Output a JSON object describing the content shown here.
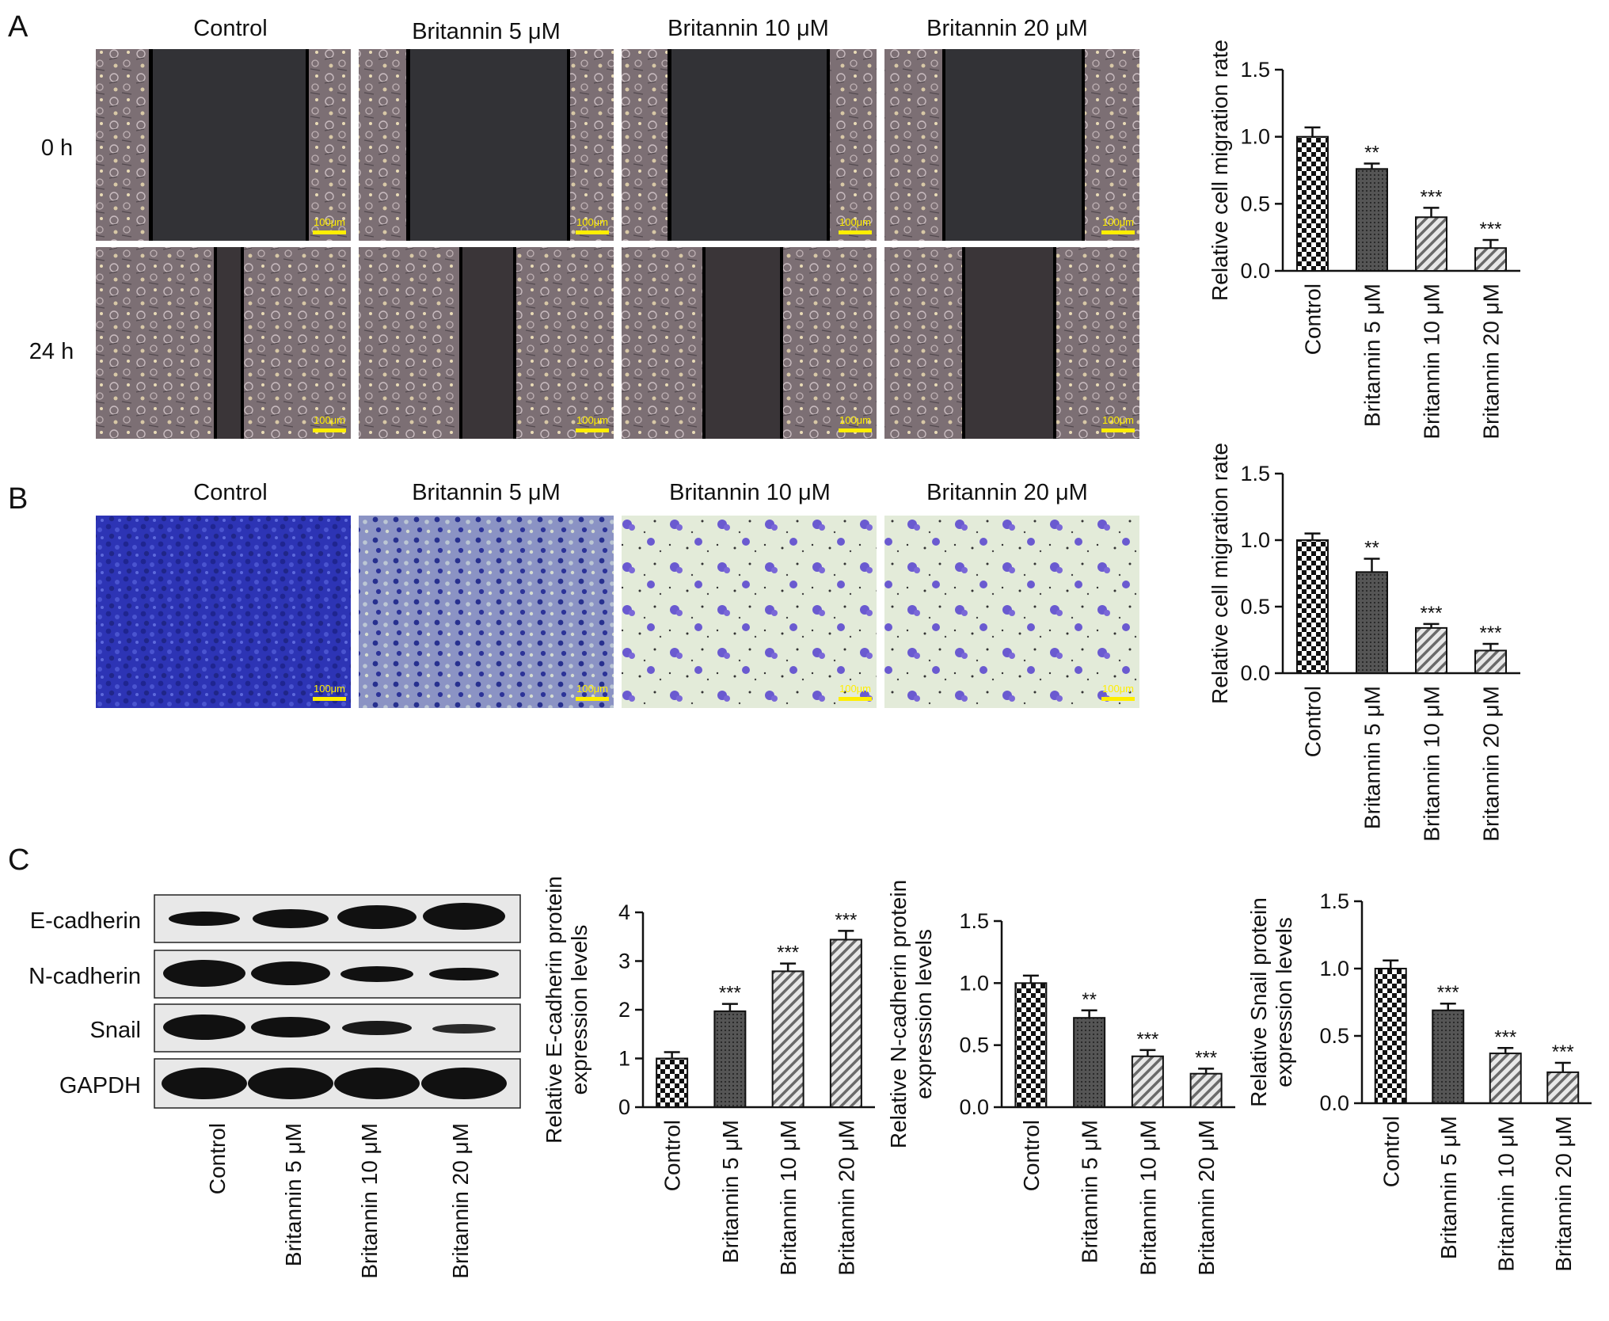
{
  "panel_labels": [
    "A",
    "B",
    "C"
  ],
  "groups": [
    "Control",
    "Britannin 5 μM",
    "Britannin 10 μM",
    "Britannin 20 μM"
  ],
  "panel_a": {
    "time_labels": [
      "0 h",
      "24 h"
    ],
    "scale_bar": "100μm"
  },
  "panel_b": {
    "scale_bar": "100μm"
  },
  "panel_c": {
    "blot_labels": [
      "E-cadherin",
      "N-cadherin",
      "Snail",
      "GAPDH"
    ]
  },
  "colors": {
    "wound_bg": "#323236",
    "cell_texture": "#8a7a7e",
    "transwell_dense": "#2a2fb0",
    "transwell_sparse_bg": "#e3ebd9",
    "transwell_cells": "#6a5ad0",
    "scale_bar": "#ffee00",
    "blot_bg": "#e8e8e8",
    "blot_band": "#111111"
  },
  "chart_data": [
    {
      "id": "chart_a",
      "type": "bar",
      "categories": [
        "Control",
        "Britannin 5 μM",
        "Britannin 10 μM",
        "Britannin 20 μM"
      ],
      "values": [
        1.0,
        0.76,
        0.4,
        0.17
      ],
      "errors": [
        0.07,
        0.04,
        0.07,
        0.06
      ],
      "significance": [
        "",
        "**",
        "***",
        "***"
      ],
      "patterns": [
        "checker",
        "dense",
        "hatch",
        "hatch"
      ],
      "ylabel": "Relative cell migration rate",
      "ylabel_lines": [
        "Relative cell migration rate"
      ],
      "ylim": [
        0,
        1.5
      ],
      "yticks": [
        0.0,
        0.5,
        1.0,
        1.5
      ],
      "ytick_labels": [
        "0.0",
        "0.5",
        "1.0",
        "1.5"
      ]
    },
    {
      "id": "chart_b",
      "type": "bar",
      "categories": [
        "Control",
        "Britannin 5 μM",
        "Britannin 10 μM",
        "Britannin 20 μM"
      ],
      "values": [
        1.0,
        0.76,
        0.34,
        0.17
      ],
      "errors": [
        0.05,
        0.1,
        0.03,
        0.05
      ],
      "significance": [
        "",
        "**",
        "***",
        "***"
      ],
      "patterns": [
        "checker",
        "dense",
        "hatch",
        "hatch"
      ],
      "ylabel": "Relative cell migration rate",
      "ylabel_lines": [
        "Relative cell migration rate"
      ],
      "ylim": [
        0,
        1.5
      ],
      "yticks": [
        0.0,
        0.5,
        1.0,
        1.5
      ],
      "ytick_labels": [
        "0.0",
        "0.5",
        "1.0",
        "1.5"
      ]
    },
    {
      "id": "chart_c1",
      "type": "bar",
      "categories": [
        "Control",
        "Britannin 5 μM",
        "Britannin 10 μM",
        "Britannin 20 μM"
      ],
      "values": [
        1.0,
        1.97,
        2.79,
        3.44
      ],
      "errors": [
        0.13,
        0.15,
        0.16,
        0.18
      ],
      "significance": [
        "",
        "***",
        "***",
        "***"
      ],
      "patterns": [
        "checker",
        "dense",
        "hatch",
        "hatch"
      ],
      "ylabel": "Relative E-cadherin protein expression levels",
      "ylabel_lines": [
        "Relative E-cadherin protein",
        "expression levels"
      ],
      "ylim": [
        0,
        4
      ],
      "yticks": [
        0,
        1,
        2,
        3,
        4
      ],
      "ytick_labels": [
        "0",
        "1",
        "2",
        "3",
        "4"
      ]
    },
    {
      "id": "chart_c2",
      "type": "bar",
      "categories": [
        "Control",
        "Britannin 5 μM",
        "Britannin 10 μM",
        "Britannin 20 μM"
      ],
      "values": [
        1.0,
        0.72,
        0.41,
        0.27
      ],
      "errors": [
        0.06,
        0.06,
        0.05,
        0.04
      ],
      "significance": [
        "",
        "**",
        "***",
        "***"
      ],
      "patterns": [
        "checker",
        "dense",
        "hatch",
        "hatch"
      ],
      "ylabel": "Relative N-cadherin protein expression levels",
      "ylabel_lines": [
        "Relative N-cadherin protein",
        "expression levels"
      ],
      "ylim": [
        0,
        1.5
      ],
      "yticks": [
        0.0,
        0.5,
        1.0,
        1.5
      ],
      "ytick_labels": [
        "0.0",
        "0.5",
        "1.0",
        "1.5"
      ]
    },
    {
      "id": "chart_c3",
      "type": "bar",
      "categories": [
        "Control",
        "Britannin 5 μM",
        "Britannin 10 μM",
        "Britannin 20 μM"
      ],
      "values": [
        1.0,
        0.69,
        0.37,
        0.23
      ],
      "errors": [
        0.06,
        0.05,
        0.04,
        0.07
      ],
      "significance": [
        "",
        "***",
        "***",
        "***"
      ],
      "patterns": [
        "checker",
        "dense",
        "hatch",
        "hatch"
      ],
      "ylabel": "Relative Snail protein expression levels",
      "ylabel_lines": [
        "Relative Snail protein",
        "expression levels"
      ],
      "ylim": [
        0,
        1.5
      ],
      "yticks": [
        0.0,
        0.5,
        1.0,
        1.5
      ],
      "ytick_labels": [
        "0.0",
        "0.5",
        "1.0",
        "1.5"
      ]
    }
  ]
}
